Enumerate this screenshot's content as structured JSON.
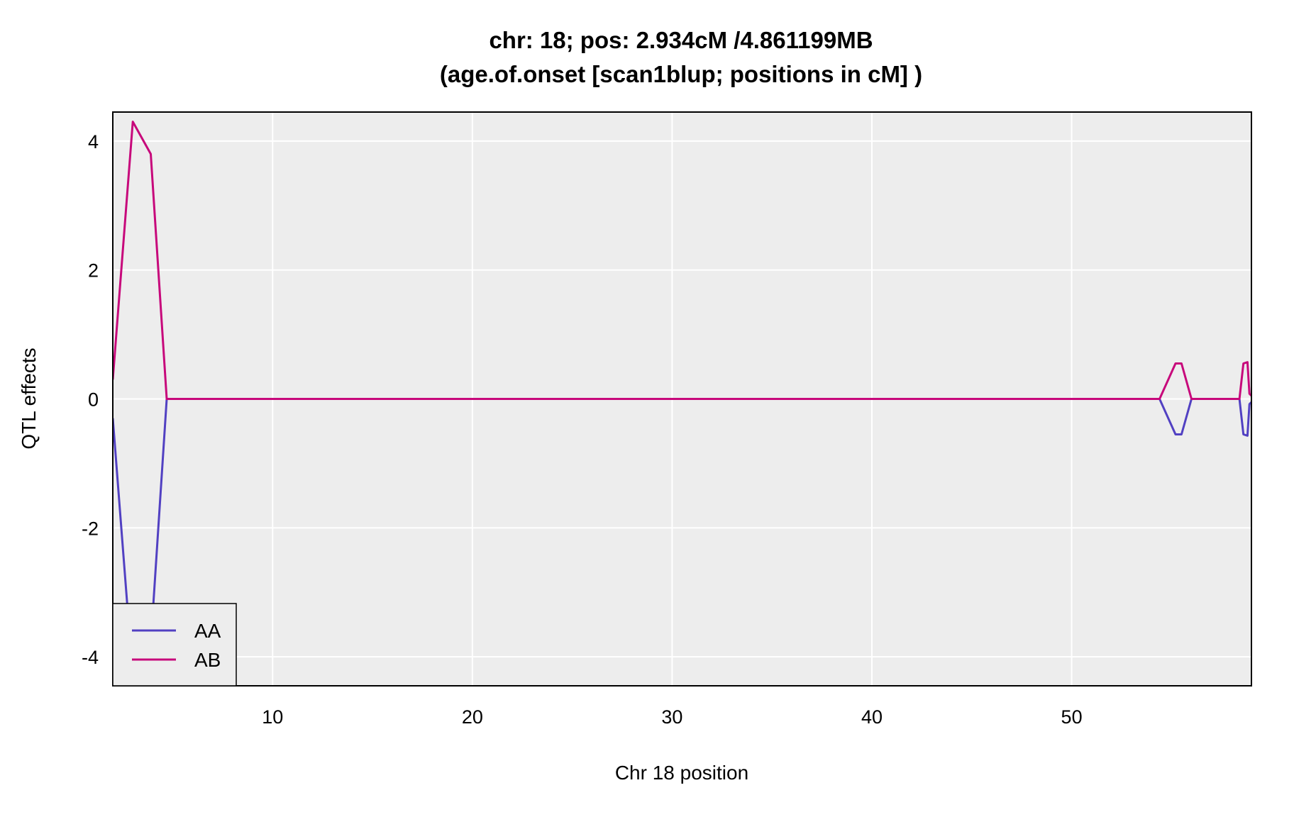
{
  "chart_data": {
    "type": "line",
    "title_line1": "chr: 18; pos: 2.934cM /4.861199MB",
    "title_line2": "(age.of.onset [scan1blup; positions in cM] )",
    "xlabel": "Chr 18 position",
    "ylabel": "QTL effects",
    "xlim": [
      2,
      59
    ],
    "ylim": [
      -4.45,
      4.45
    ],
    "xticks": [
      10,
      20,
      30,
      40,
      50
    ],
    "yticks": [
      -4,
      -2,
      0,
      2,
      4
    ],
    "grid": true,
    "legend_position": "bottom-left",
    "series": [
      {
        "name": "AA",
        "color": "#5140C2",
        "x": [
          2.0,
          3.0,
          3.9,
          4.7,
          54.4,
          55.2,
          55.5,
          56.0,
          58.4,
          58.6,
          58.8,
          58.9,
          59.0
        ],
        "y": [
          -0.3,
          -4.3,
          -3.8,
          0.0,
          0.0,
          -0.55,
          -0.55,
          0.0,
          0.0,
          -0.55,
          -0.57,
          -0.08,
          -0.05
        ]
      },
      {
        "name": "AB",
        "color": "#C7087B",
        "x": [
          2.0,
          3.0,
          3.9,
          4.7,
          54.4,
          55.2,
          55.5,
          56.0,
          58.4,
          58.6,
          58.8,
          58.9,
          59.0
        ],
        "y": [
          0.3,
          4.3,
          3.8,
          0.0,
          0.0,
          0.55,
          0.55,
          0.0,
          0.0,
          0.55,
          0.57,
          0.08,
          0.05
        ]
      }
    ]
  }
}
